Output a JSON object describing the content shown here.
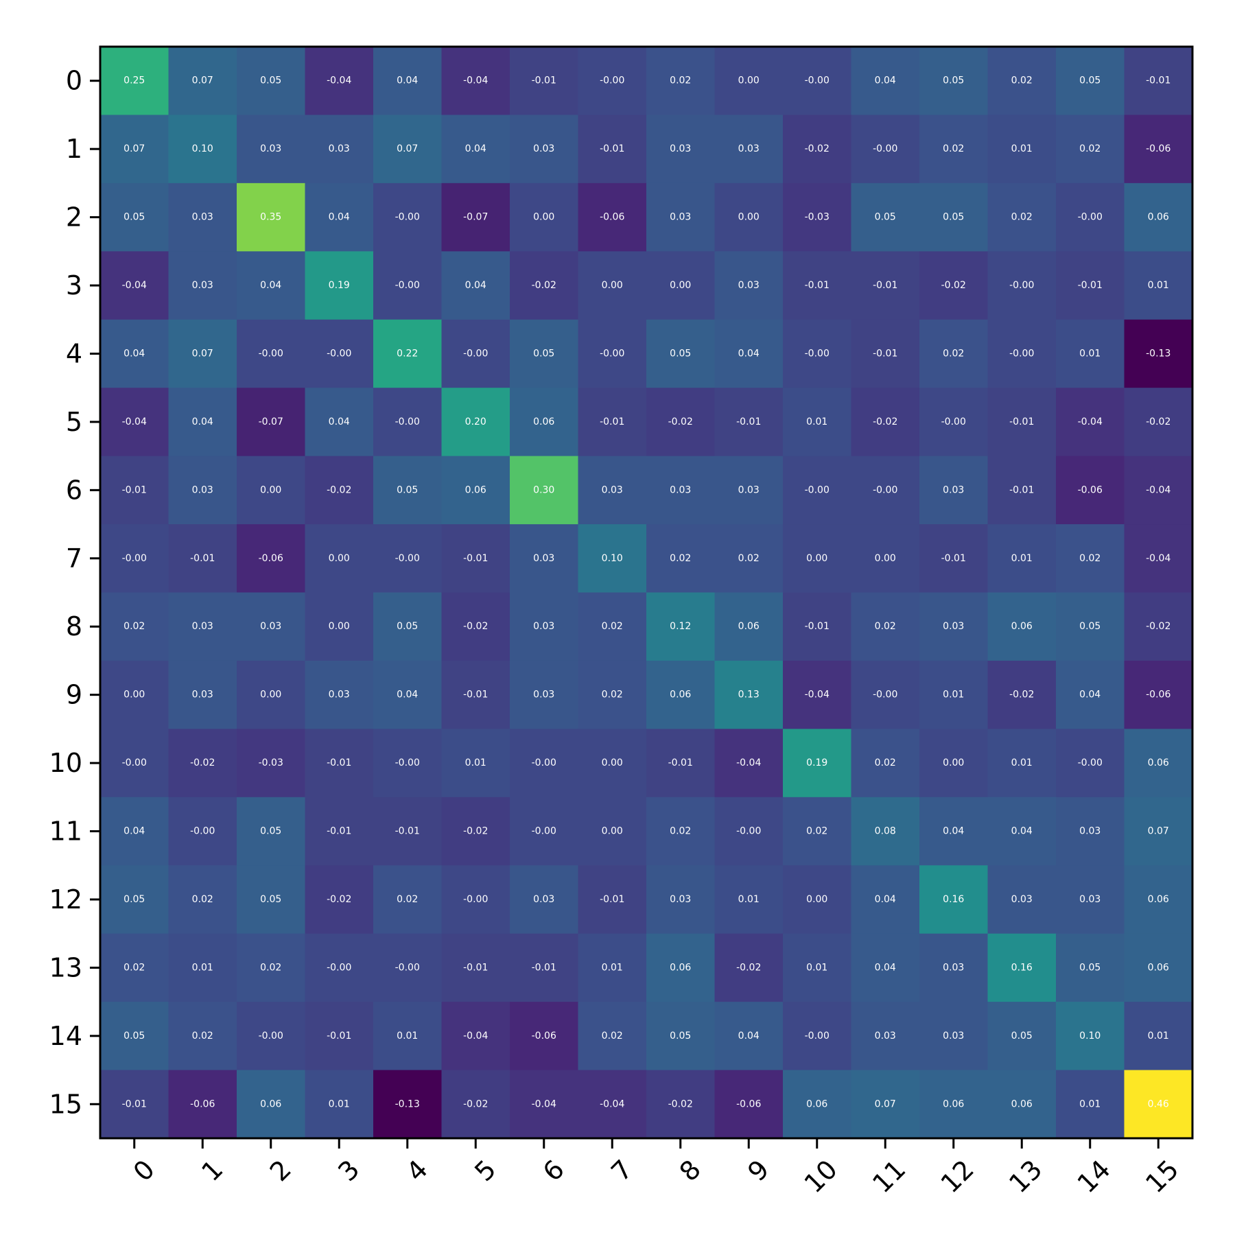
{
  "chart_data": {
    "type": "heatmap",
    "title": "",
    "xlabel": "",
    "ylabel": "",
    "x_tick_labels": [
      "0",
      "1",
      "2",
      "3",
      "4",
      "5",
      "6",
      "7",
      "8",
      "9",
      "10",
      "11",
      "12",
      "13",
      "14",
      "15"
    ],
    "y_tick_labels": [
      "0",
      "1",
      "2",
      "3",
      "4",
      "5",
      "6",
      "7",
      "8",
      "9",
      "10",
      "11",
      "12",
      "13",
      "14",
      "15"
    ],
    "colormap": "viridis",
    "color_range": [
      -0.13,
      0.46
    ],
    "grid": false,
    "values": [
      [
        0.25,
        0.07,
        0.05,
        -0.04,
        0.04,
        -0.04,
        -0.01,
        -0.0,
        0.02,
        0.0,
        -0.0,
        0.04,
        0.05,
        0.02,
        0.05,
        -0.01
      ],
      [
        0.07,
        0.1,
        0.03,
        0.03,
        0.07,
        0.04,
        0.03,
        -0.01,
        0.03,
        0.03,
        -0.02,
        -0.0,
        0.02,
        0.01,
        0.02,
        -0.06
      ],
      [
        0.05,
        0.03,
        0.35,
        0.04,
        -0.0,
        -0.07,
        0.0,
        -0.06,
        0.03,
        0.0,
        -0.03,
        0.05,
        0.05,
        0.02,
        -0.0,
        0.06
      ],
      [
        -0.04,
        0.03,
        0.04,
        0.19,
        -0.0,
        0.04,
        -0.02,
        0.0,
        0.0,
        0.03,
        -0.01,
        -0.01,
        -0.02,
        -0.0,
        -0.01,
        0.01
      ],
      [
        0.04,
        0.07,
        -0.0,
        -0.0,
        0.22,
        -0.0,
        0.05,
        -0.0,
        0.05,
        0.04,
        -0.0,
        -0.01,
        0.02,
        -0.0,
        0.01,
        -0.13
      ],
      [
        -0.04,
        0.04,
        -0.07,
        0.04,
        -0.0,
        0.2,
        0.06,
        -0.01,
        -0.02,
        -0.01,
        0.01,
        -0.02,
        -0.0,
        -0.01,
        -0.04,
        -0.02
      ],
      [
        -0.01,
        0.03,
        0.0,
        -0.02,
        0.05,
        0.06,
        0.3,
        0.03,
        0.03,
        0.03,
        -0.0,
        -0.0,
        0.03,
        -0.01,
        -0.06,
        -0.04
      ],
      [
        -0.0,
        -0.01,
        -0.06,
        0.0,
        -0.0,
        -0.01,
        0.03,
        0.1,
        0.02,
        0.02,
        0.0,
        0.0,
        -0.01,
        0.01,
        0.02,
        -0.04
      ],
      [
        0.02,
        0.03,
        0.03,
        0.0,
        0.05,
        -0.02,
        0.03,
        0.02,
        0.12,
        0.06,
        -0.01,
        0.02,
        0.03,
        0.06,
        0.05,
        -0.02
      ],
      [
        0.0,
        0.03,
        0.0,
        0.03,
        0.04,
        -0.01,
        0.03,
        0.02,
        0.06,
        0.13,
        -0.04,
        -0.0,
        0.01,
        -0.02,
        0.04,
        -0.06
      ],
      [
        -0.0,
        -0.02,
        -0.03,
        -0.01,
        -0.0,
        0.01,
        -0.0,
        0.0,
        -0.01,
        -0.04,
        0.19,
        0.02,
        0.0,
        0.01,
        -0.0,
        0.06
      ],
      [
        0.04,
        -0.0,
        0.05,
        -0.01,
        -0.01,
        -0.02,
        -0.0,
        0.0,
        0.02,
        -0.0,
        0.02,
        0.08,
        0.04,
        0.04,
        0.03,
        0.07
      ],
      [
        0.05,
        0.02,
        0.05,
        -0.02,
        0.02,
        -0.0,
        0.03,
        -0.01,
        0.03,
        0.01,
        0.0,
        0.04,
        0.16,
        0.03,
        0.03,
        0.06
      ],
      [
        0.02,
        0.01,
        0.02,
        -0.0,
        -0.0,
        -0.01,
        -0.01,
        0.01,
        0.06,
        -0.02,
        0.01,
        0.04,
        0.03,
        0.16,
        0.05,
        0.06
      ],
      [
        0.05,
        0.02,
        -0.0,
        -0.01,
        0.01,
        -0.04,
        -0.06,
        0.02,
        0.05,
        0.04,
        -0.0,
        0.03,
        0.03,
        0.05,
        0.1,
        0.01
      ],
      [
        -0.01,
        -0.06,
        0.06,
        0.01,
        -0.13,
        -0.02,
        -0.04,
        -0.04,
        -0.02,
        -0.06,
        0.06,
        0.07,
        0.06,
        0.06,
        0.01,
        0.46
      ]
    ],
    "cell_labels": [
      [
        "0.25",
        "0.07",
        "0.05",
        "-0.04",
        "0.04",
        "-0.04",
        "-0.01",
        "-0.00",
        "0.02",
        "0.00",
        "-0.00",
        "0.04",
        "0.05",
        "0.02",
        "0.05",
        "-0.01"
      ],
      [
        "0.07",
        "0.10",
        "0.03",
        "0.03",
        "0.07",
        "0.04",
        "0.03",
        "-0.01",
        "0.03",
        "0.03",
        "-0.02",
        "-0.00",
        "0.02",
        "0.01",
        "0.02",
        "-0.06"
      ],
      [
        "0.05",
        "0.03",
        "0.35",
        "0.04",
        "-0.00",
        "-0.07",
        "0.00",
        "-0.06",
        "0.03",
        "0.00",
        "-0.03",
        "0.05",
        "0.05",
        "0.02",
        "-0.00",
        "0.06"
      ],
      [
        "-0.04",
        "0.03",
        "0.04",
        "0.19",
        "-0.00",
        "0.04",
        "-0.02",
        "0.00",
        "0.00",
        "0.03",
        "-0.01",
        "-0.01",
        "-0.02",
        "-0.00",
        "-0.01",
        "0.01"
      ],
      [
        "0.04",
        "0.07",
        "-0.00",
        "-0.00",
        "0.22",
        "-0.00",
        "0.05",
        "-0.00",
        "0.05",
        "0.04",
        "-0.00",
        "-0.01",
        "0.02",
        "-0.00",
        "0.01",
        "-0.13"
      ],
      [
        "-0.04",
        "0.04",
        "-0.07",
        "0.04",
        "-0.00",
        "0.20",
        "0.06",
        "-0.01",
        "-0.02",
        "-0.01",
        "0.01",
        "-0.02",
        "-0.00",
        "-0.01",
        "-0.04",
        "-0.02"
      ],
      [
        "-0.01",
        "0.03",
        "0.00",
        "-0.02",
        "0.05",
        "0.06",
        "0.30",
        "0.03",
        "0.03",
        "0.03",
        "-0.00",
        "-0.00",
        "0.03",
        "-0.01",
        "-0.06",
        "-0.04"
      ],
      [
        "-0.00",
        "-0.01",
        "-0.06",
        "0.00",
        "-0.00",
        "-0.01",
        "0.03",
        "0.10",
        "0.02",
        "0.02",
        "0.00",
        "0.00",
        "-0.01",
        "0.01",
        "0.02",
        "-0.04"
      ],
      [
        "0.02",
        "0.03",
        "0.03",
        "0.00",
        "0.05",
        "-0.02",
        "0.03",
        "0.02",
        "0.12",
        "0.06",
        "-0.01",
        "0.02",
        "0.03",
        "0.06",
        "0.05",
        "-0.02"
      ],
      [
        "0.00",
        "0.03",
        "0.00",
        "0.03",
        "0.04",
        "-0.01",
        "0.03",
        "0.02",
        "0.06",
        "0.13",
        "-0.04",
        "-0.00",
        "0.01",
        "-0.02",
        "0.04",
        "-0.06"
      ],
      [
        "-0.00",
        "-0.02",
        "-0.03",
        "-0.01",
        "-0.00",
        "0.01",
        "-0.00",
        "0.00",
        "-0.01",
        "-0.04",
        "0.19",
        "0.02",
        "0.00",
        "0.01",
        "-0.00",
        "0.06"
      ],
      [
        "0.04",
        "-0.00",
        "0.05",
        "-0.01",
        "-0.01",
        "-0.02",
        "-0.00",
        "0.00",
        "0.02",
        "-0.00",
        "0.02",
        "0.08",
        "0.04",
        "0.04",
        "0.03",
        "0.07"
      ],
      [
        "0.05",
        "0.02",
        "0.05",
        "-0.02",
        "0.02",
        "-0.00",
        "0.03",
        "-0.01",
        "0.03",
        "0.01",
        "0.00",
        "0.04",
        "0.16",
        "0.03",
        "0.03",
        "0.06"
      ],
      [
        "0.02",
        "0.01",
        "0.02",
        "-0.00",
        "-0.00",
        "-0.01",
        "-0.01",
        "0.01",
        "0.06",
        "-0.02",
        "0.01",
        "0.04",
        "0.03",
        "0.16",
        "0.05",
        "0.06"
      ],
      [
        "0.05",
        "0.02",
        "-0.00",
        "-0.01",
        "0.01",
        "-0.04",
        "-0.06",
        "0.02",
        "0.05",
        "0.04",
        "-0.00",
        "0.03",
        "0.03",
        "0.05",
        "0.10",
        "0.01"
      ],
      [
        "-0.01",
        "-0.06",
        "0.06",
        "0.01",
        "-0.13",
        "-0.02",
        "-0.04",
        "-0.04",
        "-0.02",
        "-0.06",
        "0.06",
        "0.07",
        "0.06",
        "0.06",
        "0.01",
        "0.46"
      ]
    ]
  }
}
